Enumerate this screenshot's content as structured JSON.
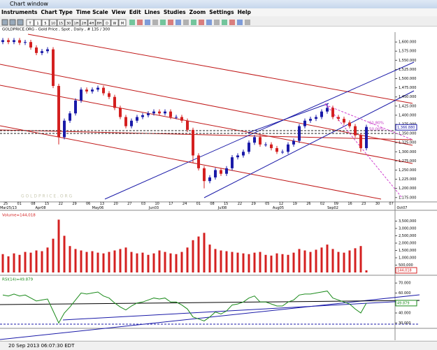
{
  "window": {
    "title": "Chart window"
  },
  "menu": [
    "Instruments",
    "Chart Type",
    "Time Scale",
    "View",
    "Edit",
    "Lines",
    "Studies",
    "Zoom",
    "Settings",
    "Help"
  ],
  "toolbar": [
    "T",
    "1",
    "5",
    "10",
    "15",
    "30",
    "1H",
    "2H",
    "4H",
    "8H",
    "D",
    "W",
    "M"
  ],
  "status": "20 Sep 2013 06:07:30 EDT",
  "chart_data": [
    {
      "type": "candlestick",
      "title": "GOLDPRICE.ORG - Gold Price , Spot , Daily , # 135 / 300",
      "watermark": "G O L D P R I C E . O R G",
      "up_color": "#1a1aa8",
      "down_color": "#d42020",
      "open": [
        1600,
        1605,
        1600,
        1605,
        1598,
        1600,
        1585,
        1570,
        1575,
        1580,
        1480,
        1340,
        1385,
        1405,
        1440,
        1470,
        1465,
        1470,
        1475,
        1460,
        1450,
        1420,
        1395,
        1370,
        1385,
        1395,
        1400,
        1405,
        1410,
        1405,
        1410,
        1395,
        1395,
        1385,
        1360,
        1290,
        1255,
        1220,
        1230,
        1250,
        1240,
        1255,
        1285,
        1290,
        1300,
        1325,
        1340,
        1320,
        1320,
        1310,
        1300,
        1300,
        1320,
        1330,
        1370,
        1385,
        1390,
        1395,
        1410,
        1420,
        1395,
        1390,
        1380,
        1370,
        1345,
        1310
      ],
      "high": [
        1611,
        1611,
        1611,
        1611,
        1606,
        1606,
        1591,
        1581,
        1586,
        1586,
        1486,
        1391,
        1411,
        1446,
        1476,
        1476,
        1476,
        1481,
        1481,
        1466,
        1456,
        1426,
        1401,
        1391,
        1401,
        1406,
        1411,
        1416,
        1416,
        1416,
        1416,
        1401,
        1401,
        1391,
        1366,
        1296,
        1261,
        1236,
        1256,
        1256,
        1261,
        1291,
        1296,
        1306,
        1331,
        1346,
        1346,
        1326,
        1326,
        1316,
        1306,
        1326,
        1336,
        1376,
        1391,
        1396,
        1401,
        1416,
        1432,
        1426,
        1401,
        1396,
        1386,
        1376,
        1351,
        1374
      ],
      "low": [
        1594,
        1594,
        1594,
        1592,
        1592,
        1579,
        1564,
        1564,
        1569,
        1474,
        1320,
        1334,
        1379,
        1399,
        1434,
        1459,
        1459,
        1464,
        1454,
        1444,
        1414,
        1389,
        1364,
        1364,
        1379,
        1389,
        1394,
        1399,
        1399,
        1399,
        1389,
        1389,
        1379,
        1354,
        1270,
        1249,
        1200,
        1214,
        1224,
        1234,
        1234,
        1249,
        1279,
        1284,
        1294,
        1319,
        1314,
        1314,
        1304,
        1294,
        1294,
        1294,
        1314,
        1324,
        1364,
        1379,
        1384,
        1389,
        1404,
        1389,
        1384,
        1374,
        1364,
        1339,
        1300,
        1304
      ],
      "close": [
        1605,
        1600,
        1605,
        1598,
        1600,
        1585,
        1570,
        1575,
        1580,
        1480,
        1340,
        1385,
        1405,
        1440,
        1470,
        1465,
        1470,
        1475,
        1460,
        1450,
        1420,
        1395,
        1370,
        1385,
        1395,
        1400,
        1405,
        1410,
        1405,
        1410,
        1395,
        1395,
        1385,
        1360,
        1290,
        1255,
        1220,
        1230,
        1250,
        1240,
        1255,
        1285,
        1290,
        1300,
        1325,
        1340,
        1320,
        1320,
        1310,
        1300,
        1300,
        1320,
        1330,
        1370,
        1385,
        1390,
        1395,
        1410,
        1420,
        1395,
        1390,
        1380,
        1370,
        1345,
        1310,
        1368
      ],
      "ylim": [
        1165,
        1627
      ],
      "yticks": [
        {
          "value": 1600,
          "label": "1,600.000"
        },
        {
          "value": 1575,
          "label": "1,575.000"
        },
        {
          "value": 1550,
          "label": "1,550.000"
        },
        {
          "value": 1525,
          "label": "1,525.000"
        },
        {
          "value": 1500,
          "label": "1,500.000"
        },
        {
          "value": 1475,
          "label": "1,475.000"
        },
        {
          "value": 1450,
          "label": "1,450.000"
        },
        {
          "value": 1425,
          "label": "1,425.000"
        },
        {
          "value": 1400,
          "label": "1,400.000"
        },
        {
          "value": 1375,
          "label": "1,375.000"
        },
        {
          "value": 1350,
          "label": "1,350.000"
        },
        {
          "value": 1325,
          "label": "1,325.000"
        },
        {
          "value": 1300,
          "label": "1,300.000"
        },
        {
          "value": 1275,
          "label": "1,275.000"
        },
        {
          "value": 1250,
          "label": "1,250.000"
        },
        {
          "value": 1225,
          "label": "1,225.000"
        },
        {
          "value": 1200,
          "label": "1,200.000"
        },
        {
          "value": 1175,
          "label": "1,175.000"
        }
      ],
      "last": {
        "value": 1366.88,
        "label": "1,366.880"
      },
      "annotations": [
        "61.80%",
        "50.00%"
      ],
      "date_labels": [
        "25",
        "01",
        "08",
        "15",
        "22",
        "29",
        "06",
        "13",
        "20",
        "27",
        "03",
        "10",
        "17",
        "24",
        "01",
        "08",
        "15",
        "22",
        "29",
        "05",
        "12",
        "19",
        "26",
        "02",
        "09",
        "16",
        "23",
        "30",
        "07"
      ],
      "month_labels": [
        "Mar25/13",
        "Apr08",
        "May06",
        "Jun03",
        "Jul08",
        "Aug05",
        "Sep02",
        "Oct07"
      ]
    },
    {
      "type": "bar",
      "title": "Volume=144,018",
      "color": "#d42020",
      "values": [
        1250000,
        1100000,
        1300000,
        1200000,
        1400000,
        1350000,
        1500000,
        1450000,
        1700000,
        2300000,
        3600000,
        2500000,
        1800000,
        1600000,
        1500000,
        1400000,
        1450000,
        1350000,
        1300000,
        1400000,
        1500000,
        1600000,
        1700000,
        1400000,
        1300000,
        1350000,
        1200000,
        1300000,
        1500000,
        1400000,
        1300000,
        1250000,
        1400000,
        1700000,
        2200000,
        2450000,
        2700000,
        1900000,
        1600000,
        1500000,
        1450000,
        1400000,
        1350000,
        1300000,
        1250000,
        1350000,
        1400000,
        1200000,
        1150000,
        1300000,
        1250000,
        1200000,
        1350000,
        1600000,
        1500000,
        1400000,
        1550000,
        1700000,
        1900000,
        1600000,
        1400000,
        1350000,
        1500000,
        1650000,
        1800000,
        144018
      ],
      "ylim": [
        0,
        4000000
      ],
      "yticks": [
        {
          "value": 3500000,
          "label": "3,500,000"
        },
        {
          "value": 3000000,
          "label": "3,000,000"
        },
        {
          "value": 2500000,
          "label": "2,500,000"
        },
        {
          "value": 2000000,
          "label": "2,000,000"
        },
        {
          "value": 1500000,
          "label": "1,500,000"
        },
        {
          "value": 1000000,
          "label": "1,000,000"
        },
        {
          "value": 500000,
          "label": "500,000"
        }
      ],
      "last": {
        "value": 144018,
        "label": "144,018"
      }
    },
    {
      "type": "line",
      "title": "RSI(14)=49.879",
      "color": "#1a8a1a",
      "values": [
        58,
        57,
        59,
        57,
        58,
        55,
        52,
        53,
        54,
        42,
        30,
        40,
        46,
        53,
        60,
        59,
        60,
        61,
        57,
        55,
        50,
        46,
        43,
        47,
        50,
        51,
        53,
        55,
        54,
        55,
        51,
        51,
        48,
        44,
        36,
        34,
        32,
        36,
        41,
        39,
        42,
        48,
        49,
        51,
        55,
        57,
        51,
        51,
        49,
        47,
        47,
        51,
        53,
        58,
        59,
        59,
        60,
        61,
        62,
        55,
        53,
        51,
        49,
        44,
        40,
        49.879
      ],
      "ylim": [
        26,
        75
      ],
      "yticks": [
        {
          "value": 70,
          "label": "70.000"
        },
        {
          "value": 60,
          "label": "60.000"
        },
        {
          "value": 50,
          "label": "50.000"
        },
        {
          "value": 40,
          "label": "40.000"
        },
        {
          "value": 30,
          "label": "30.000"
        }
      ],
      "last": {
        "value": 49.879,
        "label": "49.879"
      }
    }
  ]
}
